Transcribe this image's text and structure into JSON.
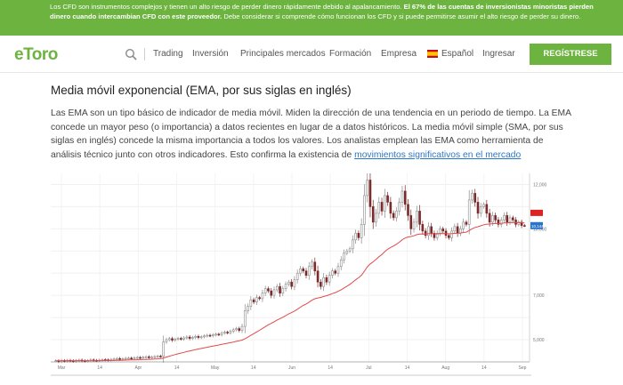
{
  "risk_banner": {
    "part1": "Los CFD son instrumentos complejos y tienen un alto riesgo de perder dinero rápidamente debido al apalancamiento. ",
    "bold": "El 67% de las cuentas de inversionistas minoristas pierden dinero cuando intercambian CFD con este proveedor.",
    "part2": " Debe considerar si comprende cómo funcionan los CFD y si puede permitirse asumir el alto riesgo de perder su dinero."
  },
  "nav": {
    "logo_alt": "eToro",
    "items": [
      "Trading",
      "Inversión",
      "Principales mercados",
      "Formación",
      "Empresa"
    ],
    "language": "Español",
    "login": "Ingresar",
    "register": "REGÍSTRESE"
  },
  "article": {
    "title": "Media móvil exponencial (EMA, por sus siglas en inglés)",
    "paragraph": "Las EMA son un tipo básico de indicador de media móvil. Miden la dirección de una tendencia en un periodo de tiempo. La EMA concede un mayor peso (o importancia) a datos recientes en lugar de a datos históricos. La media móvil simple (SMA, por sus siglas en inglés) concede la misma importancia a todos los valores. Los analistas emplean las EMA como herramienta de análisis técnico junto con otros indicadores. Esto confirma la existencia de ",
    "link": "movimientos significativos en el mercado"
  },
  "chart_data": {
    "type": "candlestick-with-ema",
    "x_labels": [
      "Mar",
      "14",
      "Apr",
      "14",
      "May",
      "14",
      "Jun",
      "14",
      "Jul",
      "14",
      "Aug",
      "14",
      "Sep"
    ],
    "y_labels": [
      "12,000",
      "10,000",
      "7,000",
      "5,000"
    ],
    "y_range": [
      4000,
      12500
    ],
    "price_tag_upper": "",
    "price_tag_lower": "10,144",
    "ema_color": "#e34a4a",
    "up_color": "#8a8a8a",
    "down_color": "#7a2a2a",
    "closes": [
      4050,
      4020,
      4060,
      4040,
      4070,
      4050,
      4030,
      4060,
      4080,
      4050,
      4040,
      4060,
      4090,
      4070,
      4060,
      4080,
      4100,
      4090,
      4080,
      4110,
      4130,
      4150,
      4120,
      4140,
      4160,
      4170,
      4150,
      4180,
      4200,
      4190,
      4210,
      4230,
      4200,
      4220,
      4240,
      4260,
      4250,
      4900,
      5000,
      5050,
      4980,
      5020,
      5060,
      5030,
      5080,
      5120,
      5060,
      5100,
      5150,
      5100,
      5130,
      5170,
      5200,
      5180,
      5220,
      5250,
      5230,
      5300,
      5340,
      5310,
      5380,
      5450,
      5500,
      5420,
      5600,
      6300,
      6500,
      6800,
      6700,
      6900,
      6850,
      7100,
      7300,
      7200,
      7000,
      7250,
      7400,
      7100,
      7300,
      7500,
      7600,
      7400,
      7700,
      8000,
      8200,
      8100,
      7900,
      8300,
      8500,
      8100,
      7600,
      7400,
      7800,
      7600,
      7900,
      8100,
      8000,
      8300,
      8600,
      8900,
      9000,
      9100,
      9500,
      9800,
      9600,
      10200,
      11500,
      12200,
      11000,
      10300,
      10700,
      11200,
      10800,
      11500,
      11200,
      10700,
      10500,
      10800,
      11200,
      11700,
      11100,
      10600,
      10000,
      10300,
      10800,
      10200,
      9900,
      9700,
      10100,
      9800,
      9600,
      9800,
      10000,
      9900,
      9700,
      9600,
      9900,
      10100,
      9800,
      10000,
      10300,
      10200,
      11300,
      11600,
      11200,
      10700,
      11000,
      11100,
      10700,
      10300,
      10600,
      10400,
      10200,
      10400,
      10600,
      10300,
      10500,
      10400,
      10200,
      10300,
      10150,
      10144
    ]
  }
}
